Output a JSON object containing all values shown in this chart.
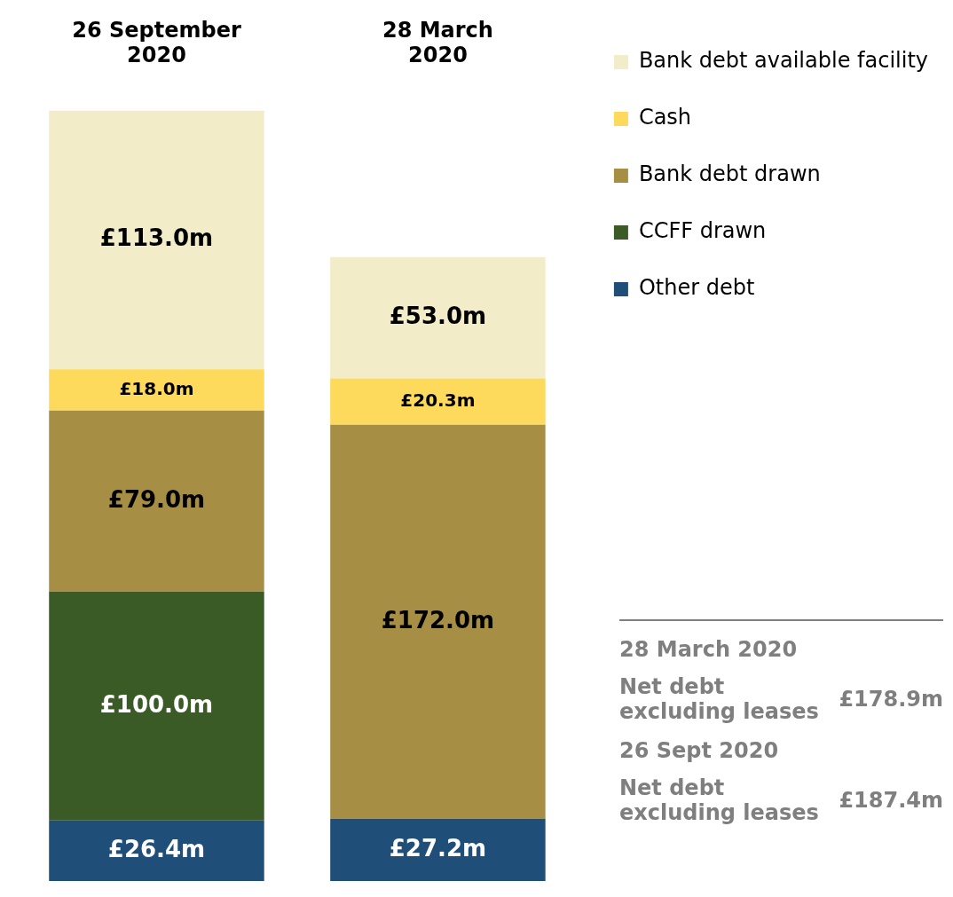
{
  "chart_data": {
    "type": "bar",
    "stacked": true,
    "categories": [
      "26 September 2020",
      "28 March 2020"
    ],
    "tick_labels": "x",
    "grid": false,
    "legend": "right",
    "series": [
      {
        "name": "Other debt",
        "color": "#1f4e79",
        "values": [
          26.4,
          27.2
        ],
        "value_labels": [
          "£26.4m",
          "£27.2m"
        ]
      },
      {
        "name": "CCFF drawn",
        "color": "#3a5a26",
        "values": [
          100.0,
          null
        ],
        "value_labels": [
          "£100.0m",
          null
        ]
      },
      {
        "name": "Bank debt drawn",
        "color": "#a68f45",
        "values": [
          79.0,
          172.0
        ],
        "value_labels": [
          "£79.0m",
          "£172.0m"
        ]
      },
      {
        "name": "Cash",
        "color": "#fdd95c",
        "values": [
          18.0,
          20.3
        ],
        "value_labels": [
          "£18.0m",
          "£20.3m"
        ]
      },
      {
        "name": "Bank debt available facility",
        "color": "#f3ecc8",
        "values": [
          113.0,
          53.0
        ],
        "value_labels": [
          "£113.0m",
          "£53.0m"
        ]
      }
    ],
    "annotations": [
      "28 March 2020",
      "Net debt excluding leases",
      "£178.9m",
      "26 Sept 2020",
      "Net debt excluding leases",
      "£187.4m"
    ]
  }
}
